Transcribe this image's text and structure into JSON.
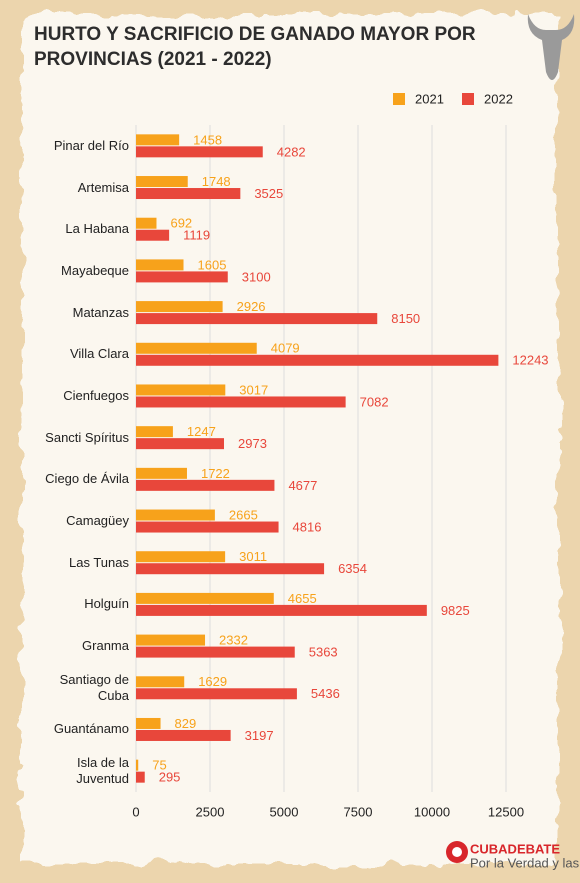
{
  "chart_data": {
    "type": "bar",
    "orientation": "horizontal",
    "title": "HURTO Y SACRIFICIO DE GANADO MAYOR POR PROVINCIAS (2021 - 2022)",
    "categories": [
      "Pinar del Río",
      "Artemisa",
      "La Habana",
      "Mayabeque",
      "Matanzas",
      "Villa Clara",
      "Cienfuegos",
      "Sancti Spíritus",
      "Ciego de Ávila",
      "Camagüey",
      "Las Tunas",
      "Holguín",
      "Granma",
      "Santiago de Cuba",
      "Guantánamo",
      "Isla de la Juventud"
    ],
    "series": [
      {
        "name": "2021",
        "color": "#f7a21b",
        "values": [
          1458,
          1748,
          692,
          1605,
          2926,
          4079,
          3017,
          1247,
          1722,
          2665,
          3011,
          4655,
          2332,
          1629,
          829,
          75
        ]
      },
      {
        "name": "2022",
        "color": "#e8473b",
        "values": [
          4282,
          3525,
          1119,
          3100,
          8150,
          12243,
          7082,
          2973,
          4677,
          4816,
          6354,
          9825,
          5363,
          5436,
          3197,
          295
        ]
      }
    ],
    "xlim": [
      0,
      12500
    ],
    "xticks": [
      0,
      2500,
      5000,
      7500,
      10000,
      12500
    ],
    "grid": true,
    "legend": "top-right"
  },
  "brand": {
    "name": "CUBADEBATE",
    "tagline": "Por la Verdad y las Ideas"
  }
}
